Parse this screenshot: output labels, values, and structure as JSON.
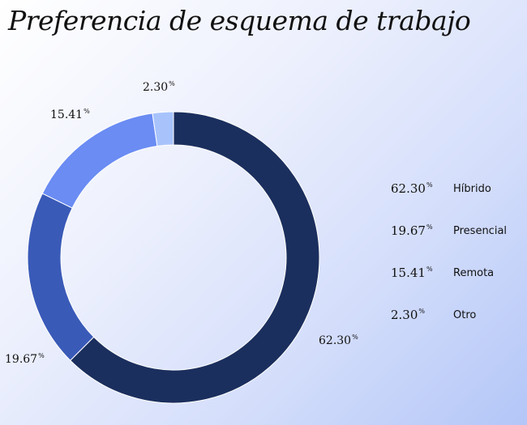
{
  "title": "Preferencia de esquema de trabajo",
  "chart_data": {
    "type": "pie",
    "title": "Preferencia de esquema de trabajo",
    "categories": [
      "Híbrido",
      "Presencial",
      "Remota",
      "Otro"
    ],
    "values": [
      62.3,
      19.67,
      15.41,
      2.3
    ],
    "value_labels": [
      "62.30",
      "19.67",
      "15.41",
      "2.30"
    ],
    "unit": "%",
    "colors": [
      "#1b2f5e",
      "#3a5ab8",
      "#6a8cf3",
      "#a8c3fc"
    ],
    "legend_position": "right"
  }
}
